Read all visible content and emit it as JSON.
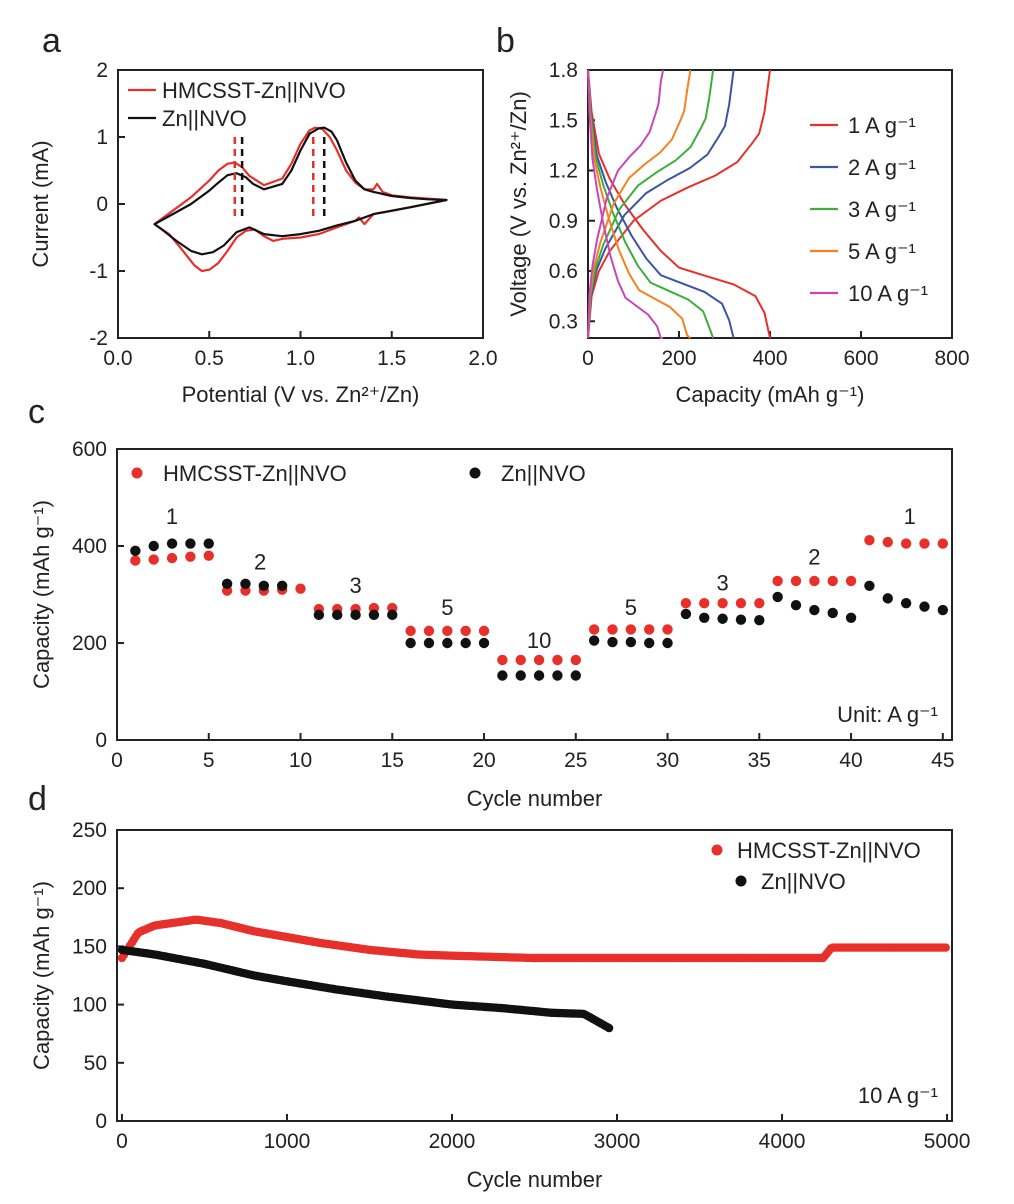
{
  "chart_data": [
    {
      "panel": "a",
      "type": "line",
      "title": "",
      "xlabel": "Potential (V vs. Zn²⁺/Zn)",
      "ylabel": "Current (mA)",
      "xlim": [
        0.0,
        2.0
      ],
      "ylim": [
        -2,
        2
      ],
      "xticks": [
        "0.0",
        "0.5",
        "1.0",
        "1.5",
        "2.0"
      ],
      "yticks": [
        "-2",
        "-1",
        "0",
        "1",
        "2"
      ],
      "legend": [
        "HMCSST-Zn||NVO",
        "Zn||NVO"
      ],
      "series": [
        {
          "name": "HMCSST-Zn||NVO",
          "color": "#e8302b",
          "upper_x": [
            0.2,
            0.3,
            0.4,
            0.5,
            0.55,
            0.6,
            0.64,
            0.68,
            0.72,
            0.8,
            0.9,
            0.95,
            1.0,
            1.05,
            1.08,
            1.12,
            1.16,
            1.2,
            1.25,
            1.3,
            1.35,
            1.4,
            1.42,
            1.45,
            1.5,
            1.6,
            1.7,
            1.8
          ],
          "upper_y": [
            -0.3,
            -0.1,
            0.1,
            0.35,
            0.5,
            0.6,
            0.62,
            0.55,
            0.42,
            0.28,
            0.38,
            0.6,
            0.9,
            1.1,
            1.14,
            1.12,
            1.0,
            0.8,
            0.5,
            0.32,
            0.22,
            0.22,
            0.3,
            0.18,
            0.13,
            0.1,
            0.08,
            0.06
          ],
          "lower_x": [
            1.8,
            1.6,
            1.4,
            1.35,
            1.32,
            1.3,
            1.2,
            1.1,
            1.0,
            0.9,
            0.85,
            0.8,
            0.75,
            0.7,
            0.65,
            0.6,
            0.55,
            0.5,
            0.46,
            0.42,
            0.35,
            0.28,
            0.2
          ],
          "lower_y": [
            0.06,
            -0.05,
            -0.15,
            -0.3,
            -0.2,
            -0.25,
            -0.35,
            -0.45,
            -0.5,
            -0.52,
            -0.55,
            -0.48,
            -0.38,
            -0.4,
            -0.5,
            -0.7,
            -0.88,
            -0.98,
            -1.0,
            -0.92,
            -0.68,
            -0.45,
            -0.3
          ]
        },
        {
          "name": "Zn||NVO",
          "color": "#111111",
          "upper_x": [
            0.2,
            0.3,
            0.4,
            0.5,
            0.55,
            0.6,
            0.65,
            0.7,
            0.74,
            0.8,
            0.9,
            0.95,
            1.0,
            1.05,
            1.1,
            1.13,
            1.17,
            1.2,
            1.25,
            1.3,
            1.35,
            1.4,
            1.5,
            1.6,
            1.7,
            1.8
          ],
          "upper_y": [
            -0.3,
            -0.15,
            0.0,
            0.2,
            0.32,
            0.43,
            0.46,
            0.4,
            0.3,
            0.22,
            0.3,
            0.5,
            0.8,
            1.05,
            1.13,
            1.14,
            1.08,
            0.95,
            0.62,
            0.35,
            0.22,
            0.18,
            0.12,
            0.09,
            0.07,
            0.06
          ],
          "lower_x": [
            1.8,
            1.6,
            1.4,
            1.3,
            1.2,
            1.1,
            1.0,
            0.9,
            0.8,
            0.72,
            0.65,
            0.58,
            0.52,
            0.46,
            0.4,
            0.32,
            0.25,
            0.2
          ],
          "lower_y": [
            0.06,
            -0.05,
            -0.15,
            -0.25,
            -0.32,
            -0.4,
            -0.45,
            -0.48,
            -0.45,
            -0.35,
            -0.42,
            -0.62,
            -0.72,
            -0.75,
            -0.7,
            -0.55,
            -0.4,
            -0.3
          ]
        }
      ],
      "markers": [
        {
          "name": "HMCSST peaks",
          "color": "#e8302b",
          "x": [
            0.64,
            1.07
          ]
        },
        {
          "name": "Zn||NVO peaks",
          "color": "#111111",
          "x": [
            0.68,
            1.13
          ]
        }
      ]
    },
    {
      "panel": "b",
      "type": "line",
      "title": "",
      "xlabel": "Capacity (mAh g⁻¹)",
      "ylabel": "Voltage (V vs. Zn²⁺/Zn)",
      "xlim": [
        0,
        800
      ],
      "ylim": [
        0.2,
        1.8
      ],
      "xticks": [
        "0",
        "200",
        "400",
        "600",
        "800"
      ],
      "yticks": [
        "0.3",
        "0.6",
        "0.9",
        "1.2",
        "1.5",
        "1.8"
      ],
      "legend": [
        "1 A g⁻¹",
        "2 A g⁻¹",
        "3 A g⁻¹",
        "5 A g⁻¹",
        "10 A g⁻¹"
      ],
      "series": [
        {
          "name": "1 A g⁻¹",
          "color": "#e8302b",
          "capacity": 400
        },
        {
          "name": "2 A g⁻¹",
          "color": "#3a55a4",
          "capacity": 320
        },
        {
          "name": "3 A g⁻¹",
          "color": "#3dae3d",
          "capacity": 275
        },
        {
          "name": "5 A g⁻¹",
          "color": "#f5821f",
          "capacity": 225
        },
        {
          "name": "10 A g⁻¹",
          "color": "#c847b8",
          "capacity": 165
        }
      ]
    },
    {
      "panel": "c",
      "type": "scatter",
      "title": "",
      "xlabel": "Cycle number",
      "ylabel": "Capacity (mAh g⁻¹)",
      "xlim": [
        0,
        45.5
      ],
      "ylim": [
        0,
        600
      ],
      "xticks": [
        "0",
        "5",
        "10",
        "15",
        "20",
        "25",
        "30",
        "35",
        "40",
        "45"
      ],
      "yticks": [
        "0",
        "200",
        "400",
        "600"
      ],
      "legend": [
        "HMCSST-Zn||NVO",
        "Zn||NVO"
      ],
      "annotation": "Unit: A g⁻¹",
      "rate_labels": [
        {
          "text": "1",
          "x": 3,
          "y": 445
        },
        {
          "text": "2",
          "x": 7.8,
          "y": 352
        },
        {
          "text": "3",
          "x": 13,
          "y": 303
        },
        {
          "text": "5",
          "x": 18,
          "y": 258
        },
        {
          "text": "10",
          "x": 23,
          "y": 190
        },
        {
          "text": "5",
          "x": 28,
          "y": 258
        },
        {
          "text": "3",
          "x": 33,
          "y": 308
        },
        {
          "text": "2",
          "x": 38,
          "y": 362
        },
        {
          "text": "1",
          "x": 43.2,
          "y": 445
        }
      ],
      "x": [
        1,
        2,
        3,
        4,
        5,
        6,
        7,
        8,
        9,
        10,
        11,
        12,
        13,
        14,
        15,
        16,
        17,
        18,
        19,
        20,
        21,
        22,
        23,
        24,
        25,
        26,
        27,
        28,
        29,
        30,
        31,
        32,
        33,
        34,
        35,
        36,
        37,
        38,
        39,
        40,
        41,
        42,
        43,
        44,
        45
      ],
      "series": [
        {
          "name": "HMCSST-Zn||NVO",
          "color": "#e8302b",
          "values": [
            370,
            372,
            375,
            378,
            380,
            308,
            308,
            308,
            310,
            312,
            270,
            270,
            270,
            272,
            272,
            225,
            225,
            225,
            225,
            225,
            165,
            165,
            165,
            165,
            165,
            228,
            228,
            228,
            228,
            228,
            282,
            282,
            282,
            282,
            282,
            328,
            328,
            328,
            328,
            328,
            412,
            408,
            405,
            405,
            405
          ]
        },
        {
          "name": "Zn||NVO",
          "color": "#111111",
          "values": [
            390,
            400,
            405,
            405,
            405,
            322,
            322,
            318,
            318,
            null,
            258,
            258,
            258,
            258,
            258,
            200,
            200,
            200,
            200,
            200,
            133,
            133,
            133,
            133,
            133,
            205,
            202,
            202,
            200,
            200,
            260,
            252,
            250,
            248,
            247,
            295,
            278,
            268,
            262,
            252,
            318,
            292,
            282,
            275,
            268
          ]
        }
      ]
    },
    {
      "panel": "d",
      "type": "scatter",
      "title": "",
      "xlabel": "Cycle number",
      "ylabel": "Capacity (mAh g⁻¹)",
      "xlim": [
        -30,
        5030
      ],
      "ylim": [
        0,
        250
      ],
      "xticks": [
        "0",
        "1000",
        "2000",
        "3000",
        "4000",
        "5000"
      ],
      "yticks": [
        "0",
        "50",
        "100",
        "150",
        "200",
        "250"
      ],
      "legend": [
        "HMCSST-Zn||NVO",
        "Zn||NVO"
      ],
      "annotation": "10 A g⁻¹",
      "series": [
        {
          "name": "HMCSST-Zn||NVO",
          "color": "#e8302b",
          "x": [
            0,
            100,
            200,
            300,
            450,
            600,
            800,
            1000,
            1200,
            1500,
            1800,
            2000,
            2500,
            3000,
            3500,
            4000,
            4250,
            4300,
            4500,
            5000
          ],
          "values": [
            140,
            162,
            168,
            170,
            173,
            170,
            163,
            158,
            153,
            147,
            143,
            142,
            140,
            140,
            140,
            140,
            140,
            149,
            149,
            149
          ]
        },
        {
          "name": "Zn||NVO",
          "color": "#111111",
          "x": [
            0,
            200,
            500,
            800,
            1000,
            1300,
            1600,
            2000,
            2300,
            2600,
            2800,
            2850,
            2900,
            2950,
            2960
          ],
          "values": [
            147,
            143,
            135,
            125,
            120,
            113,
            107,
            100,
            97,
            93,
            92,
            88,
            84,
            80,
            79
          ]
        }
      ]
    }
  ],
  "panel_labels": [
    "a",
    "b",
    "c",
    "d"
  ]
}
